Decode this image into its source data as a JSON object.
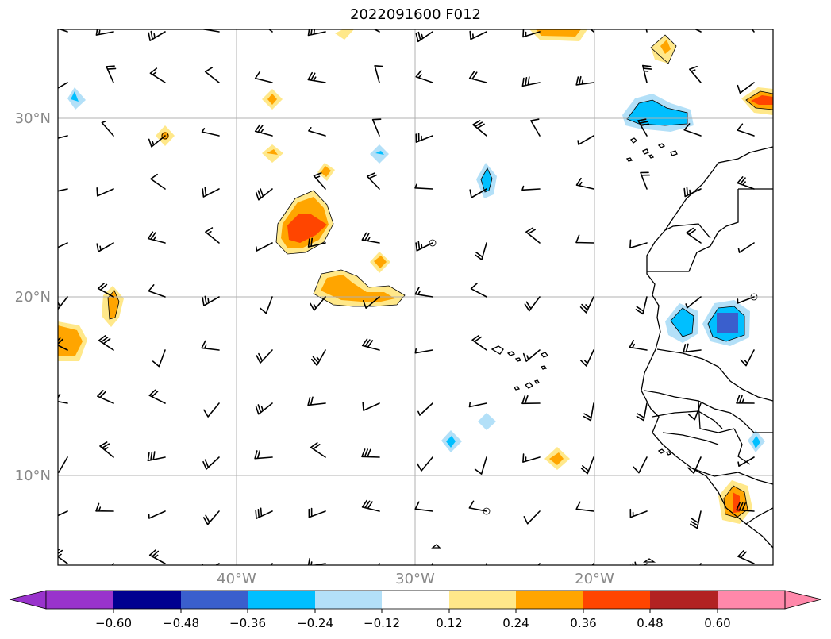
{
  "title": "2022091600 F012",
  "map": {
    "lat_labels": [
      "30°N",
      "20°N",
      "10°N"
    ],
    "lon_labels": [
      "40°W",
      "30°W",
      "20°W"
    ],
    "extent": {
      "lon_min": -50,
      "lon_max": -10,
      "lat_min": 5,
      "lat_max": 35
    },
    "grid_lines": true,
    "coastlines": true,
    "wind_barbs": true
  },
  "colorbar": {
    "extend": "both",
    "tick_labels": [
      "−0.60",
      "−0.48",
      "−0.36",
      "−0.24",
      "−0.12",
      "0.12",
      "0.24",
      "0.36",
      "0.48",
      "0.60"
    ],
    "colors": [
      "#9933cc",
      "#000090",
      "#3a5fcd",
      "#00bfff",
      "#b3e0f8",
      "#ffffff",
      "#ffe88a",
      "#ffa500",
      "#ff4500",
      "#b22222",
      "#ff88aa"
    ]
  }
}
